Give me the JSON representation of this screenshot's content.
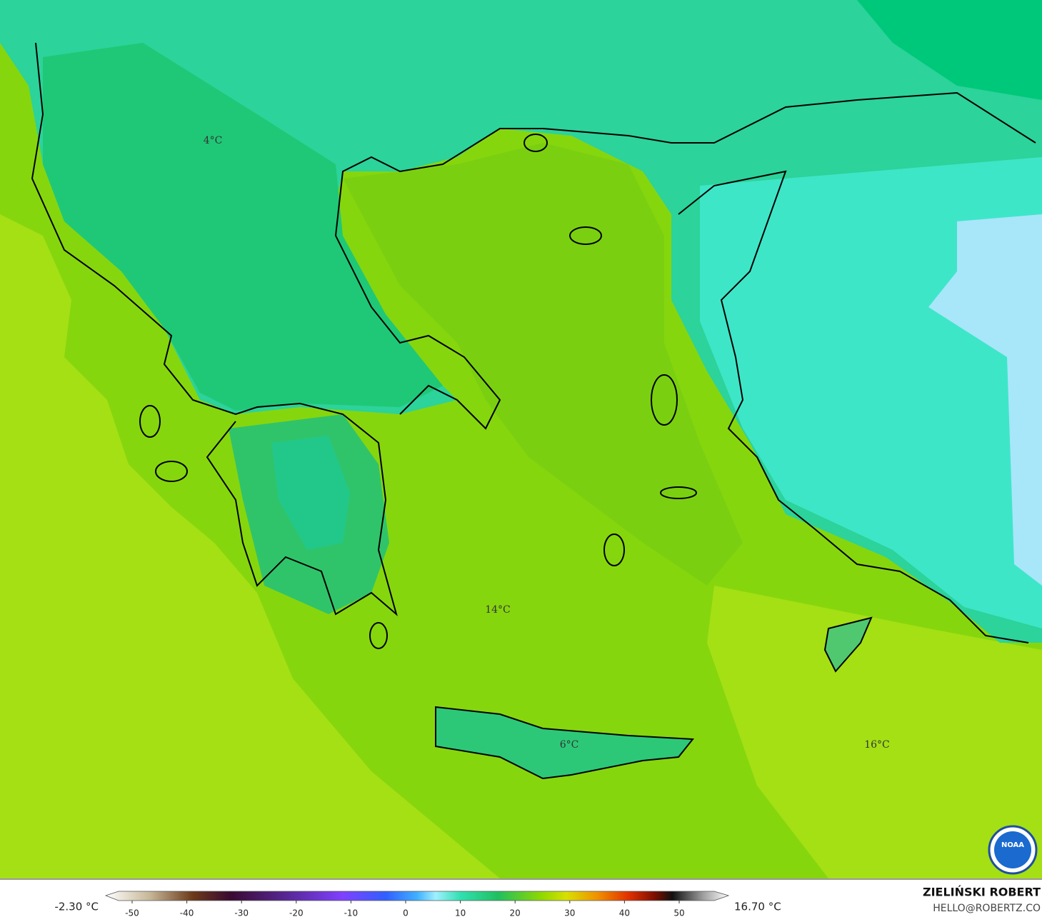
{
  "map": {
    "labels": [
      "4°C",
      "14°C",
      "6°C",
      "16°C"
    ]
  },
  "colorbar": {
    "min_label": "-2.30 °C",
    "max_label": "16.70 °C",
    "ticks": [
      -50,
      -40,
      -30,
      -20,
      -10,
      0,
      10,
      20,
      30,
      40,
      50
    ]
  },
  "credits": {
    "author": "ZIELIŃSKI ROBERT",
    "contact": "HELLO@ROBERTZ.CO",
    "logo": "NOAA"
  }
}
